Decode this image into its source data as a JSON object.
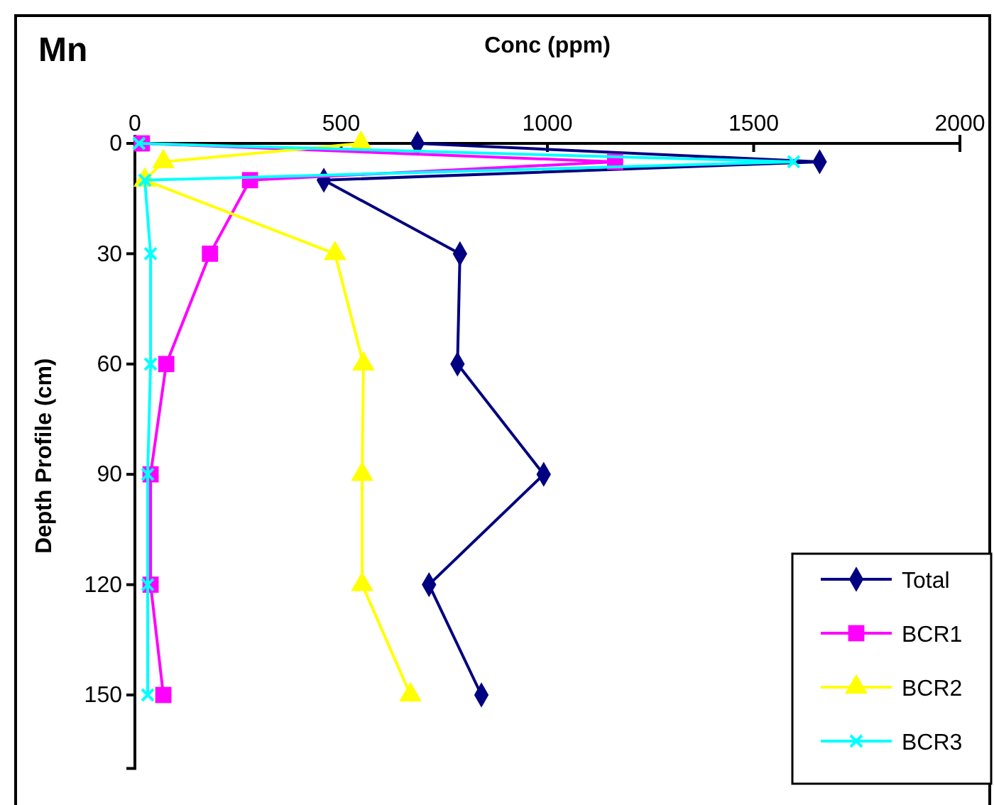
{
  "chart_data": {
    "type": "line",
    "title": "Mn",
    "xlabel": "Conc (ppm)",
    "ylabel": "Depth Profile (cm)",
    "xlim": [
      0,
      2000
    ],
    "xticks": [
      0,
      500,
      1000,
      1500,
      2000
    ],
    "ylim": [
      170,
      0
    ],
    "yticks": [
      0,
      30,
      60,
      90,
      120,
      150
    ],
    "legend": "bottom right",
    "grid": false,
    "series": [
      {
        "name": "Total",
        "color": "#000080",
        "marker": "diamond",
        "x": [
          685,
          1660,
          458,
          788,
          782,
          991,
          713,
          840
        ],
        "values": [
          0,
          5,
          10,
          30,
          60,
          90,
          120,
          150
        ]
      },
      {
        "name": "BCR1",
        "color": "#ff00ff",
        "marker": "square",
        "x": [
          17,
          1164,
          279,
          182,
          76,
          38,
          38,
          69
        ],
        "values": [
          0,
          5,
          10,
          30,
          60,
          90,
          120,
          150
        ]
      },
      {
        "name": "BCR2",
        "color": "#ffff00",
        "marker": "triangle",
        "x": [
          548,
          69,
          24,
          485,
          554,
          551,
          551,
          668
        ],
        "values": [
          0,
          5,
          10,
          30,
          60,
          90,
          120,
          150
        ]
      },
      {
        "name": "BCR3",
        "color": "#00ffff",
        "marker": "cross",
        "x": [
          10,
          1597,
          24,
          38,
          38,
          31,
          31,
          31
        ],
        "values": [
          0,
          5,
          10,
          30,
          60,
          90,
          120,
          150
        ]
      }
    ]
  }
}
